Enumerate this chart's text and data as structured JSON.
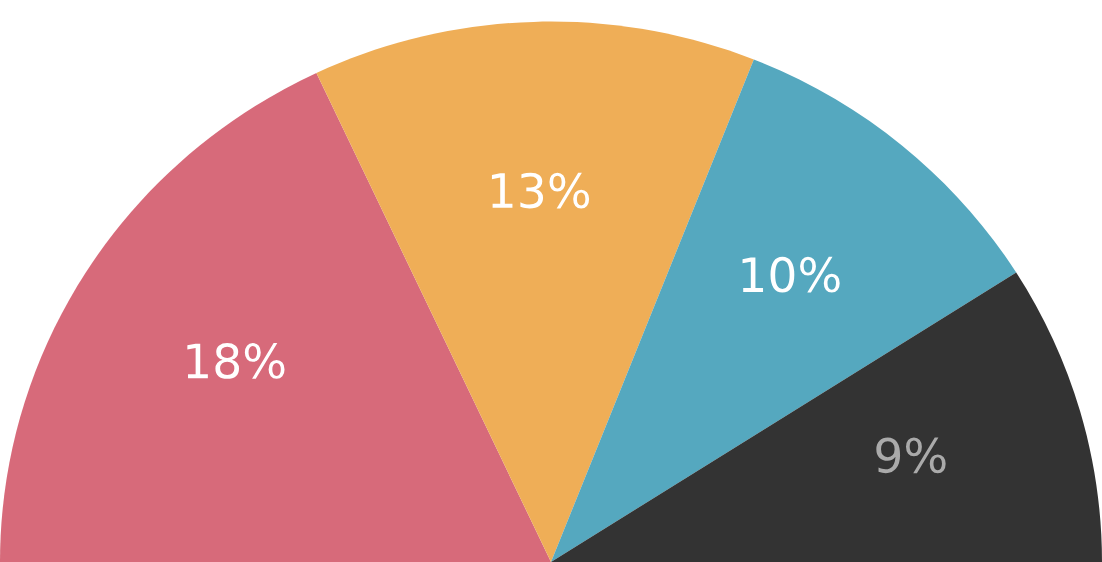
{
  "chart_data": {
    "type": "pie",
    "categories": [
      null,
      null,
      null,
      null
    ],
    "values": [
      18,
      13,
      10,
      9
    ],
    "colors": [
      "#d76a7a",
      "#efae57",
      "#55a8bf",
      "#333333"
    ],
    "value_labels": [
      "18%",
      "13%",
      "10%",
      "9%"
    ]
  }
}
